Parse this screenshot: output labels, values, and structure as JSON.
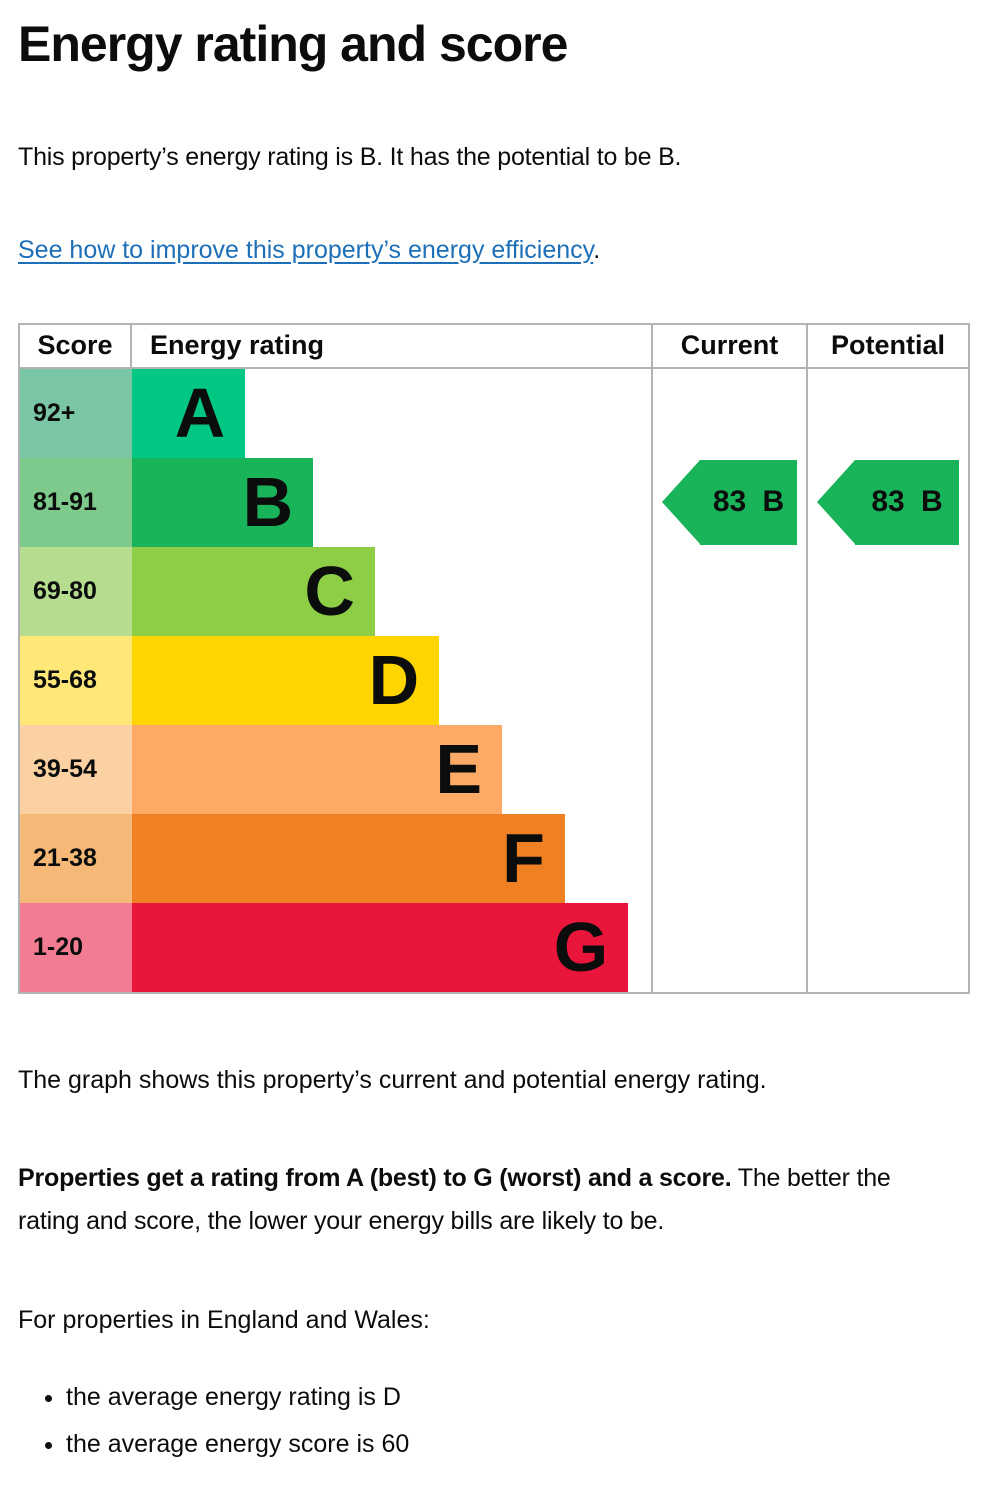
{
  "page": {
    "title": "Energy rating and score",
    "intro": "This property’s energy rating is B. It has the potential to be B.",
    "improve_link": "See how to improve this property’s energy efficiency",
    "improve_link_suffix": ".",
    "graph_caption": "The graph shows this property’s current and potential energy rating.",
    "explain_bold": "Properties get a rating from A (best) to G (worst) and a score.",
    "explain_rest": "The better the rating and score, the lower your energy bills are likely to be.",
    "regional_heading": "For properties in England and Wales:",
    "bullets": [
      "the average energy rating is D",
      "the average energy score is 60"
    ]
  },
  "colors": {
    "text": "#0b0c0c",
    "link": "#1d70b8",
    "table_border": "#b1b4b6"
  },
  "chart_data": {
    "type": "bar",
    "title": "Energy rating and score",
    "headers": {
      "score": "Score",
      "rating": "Energy rating",
      "current": "Current",
      "potential": "Potential"
    },
    "bands": [
      {
        "letter": "A",
        "score_range": "92+",
        "bar_color": "#00c781",
        "tint_color": "#7bc7a5",
        "bar_width_pct": 21.8
      },
      {
        "letter": "B",
        "score_range": "81-91",
        "bar_color": "#19b459",
        "tint_color": "#7eca8c",
        "bar_width_pct": 34.9
      },
      {
        "letter": "C",
        "score_range": "69-80",
        "bar_color": "#8dce46",
        "tint_color": "#b6dd8f",
        "bar_width_pct": 46.8
      },
      {
        "letter": "D",
        "score_range": "55-68",
        "bar_color": "#ffd500",
        "tint_color": "#ffe878",
        "bar_width_pct": 59.2
      },
      {
        "letter": "E",
        "score_range": "39-54",
        "bar_color": "#fcaa65",
        "tint_color": "#fbd0a2",
        "bar_width_pct": 71.3
      },
      {
        "letter": "F",
        "score_range": "21-38",
        "bar_color": "#ef8023",
        "tint_color": "#f5b877",
        "bar_width_pct": 83.4
      },
      {
        "letter": "G",
        "score_range": "1-20",
        "bar_color": "#e9153b",
        "tint_color": "#f27d93",
        "bar_width_pct": 95.6
      }
    ],
    "current": {
      "score": "83",
      "band": "B",
      "band_index": 1,
      "arrow_color": "#19b459"
    },
    "potential": {
      "score": "83",
      "band": "B",
      "band_index": 1,
      "arrow_color": "#19b459"
    }
  }
}
